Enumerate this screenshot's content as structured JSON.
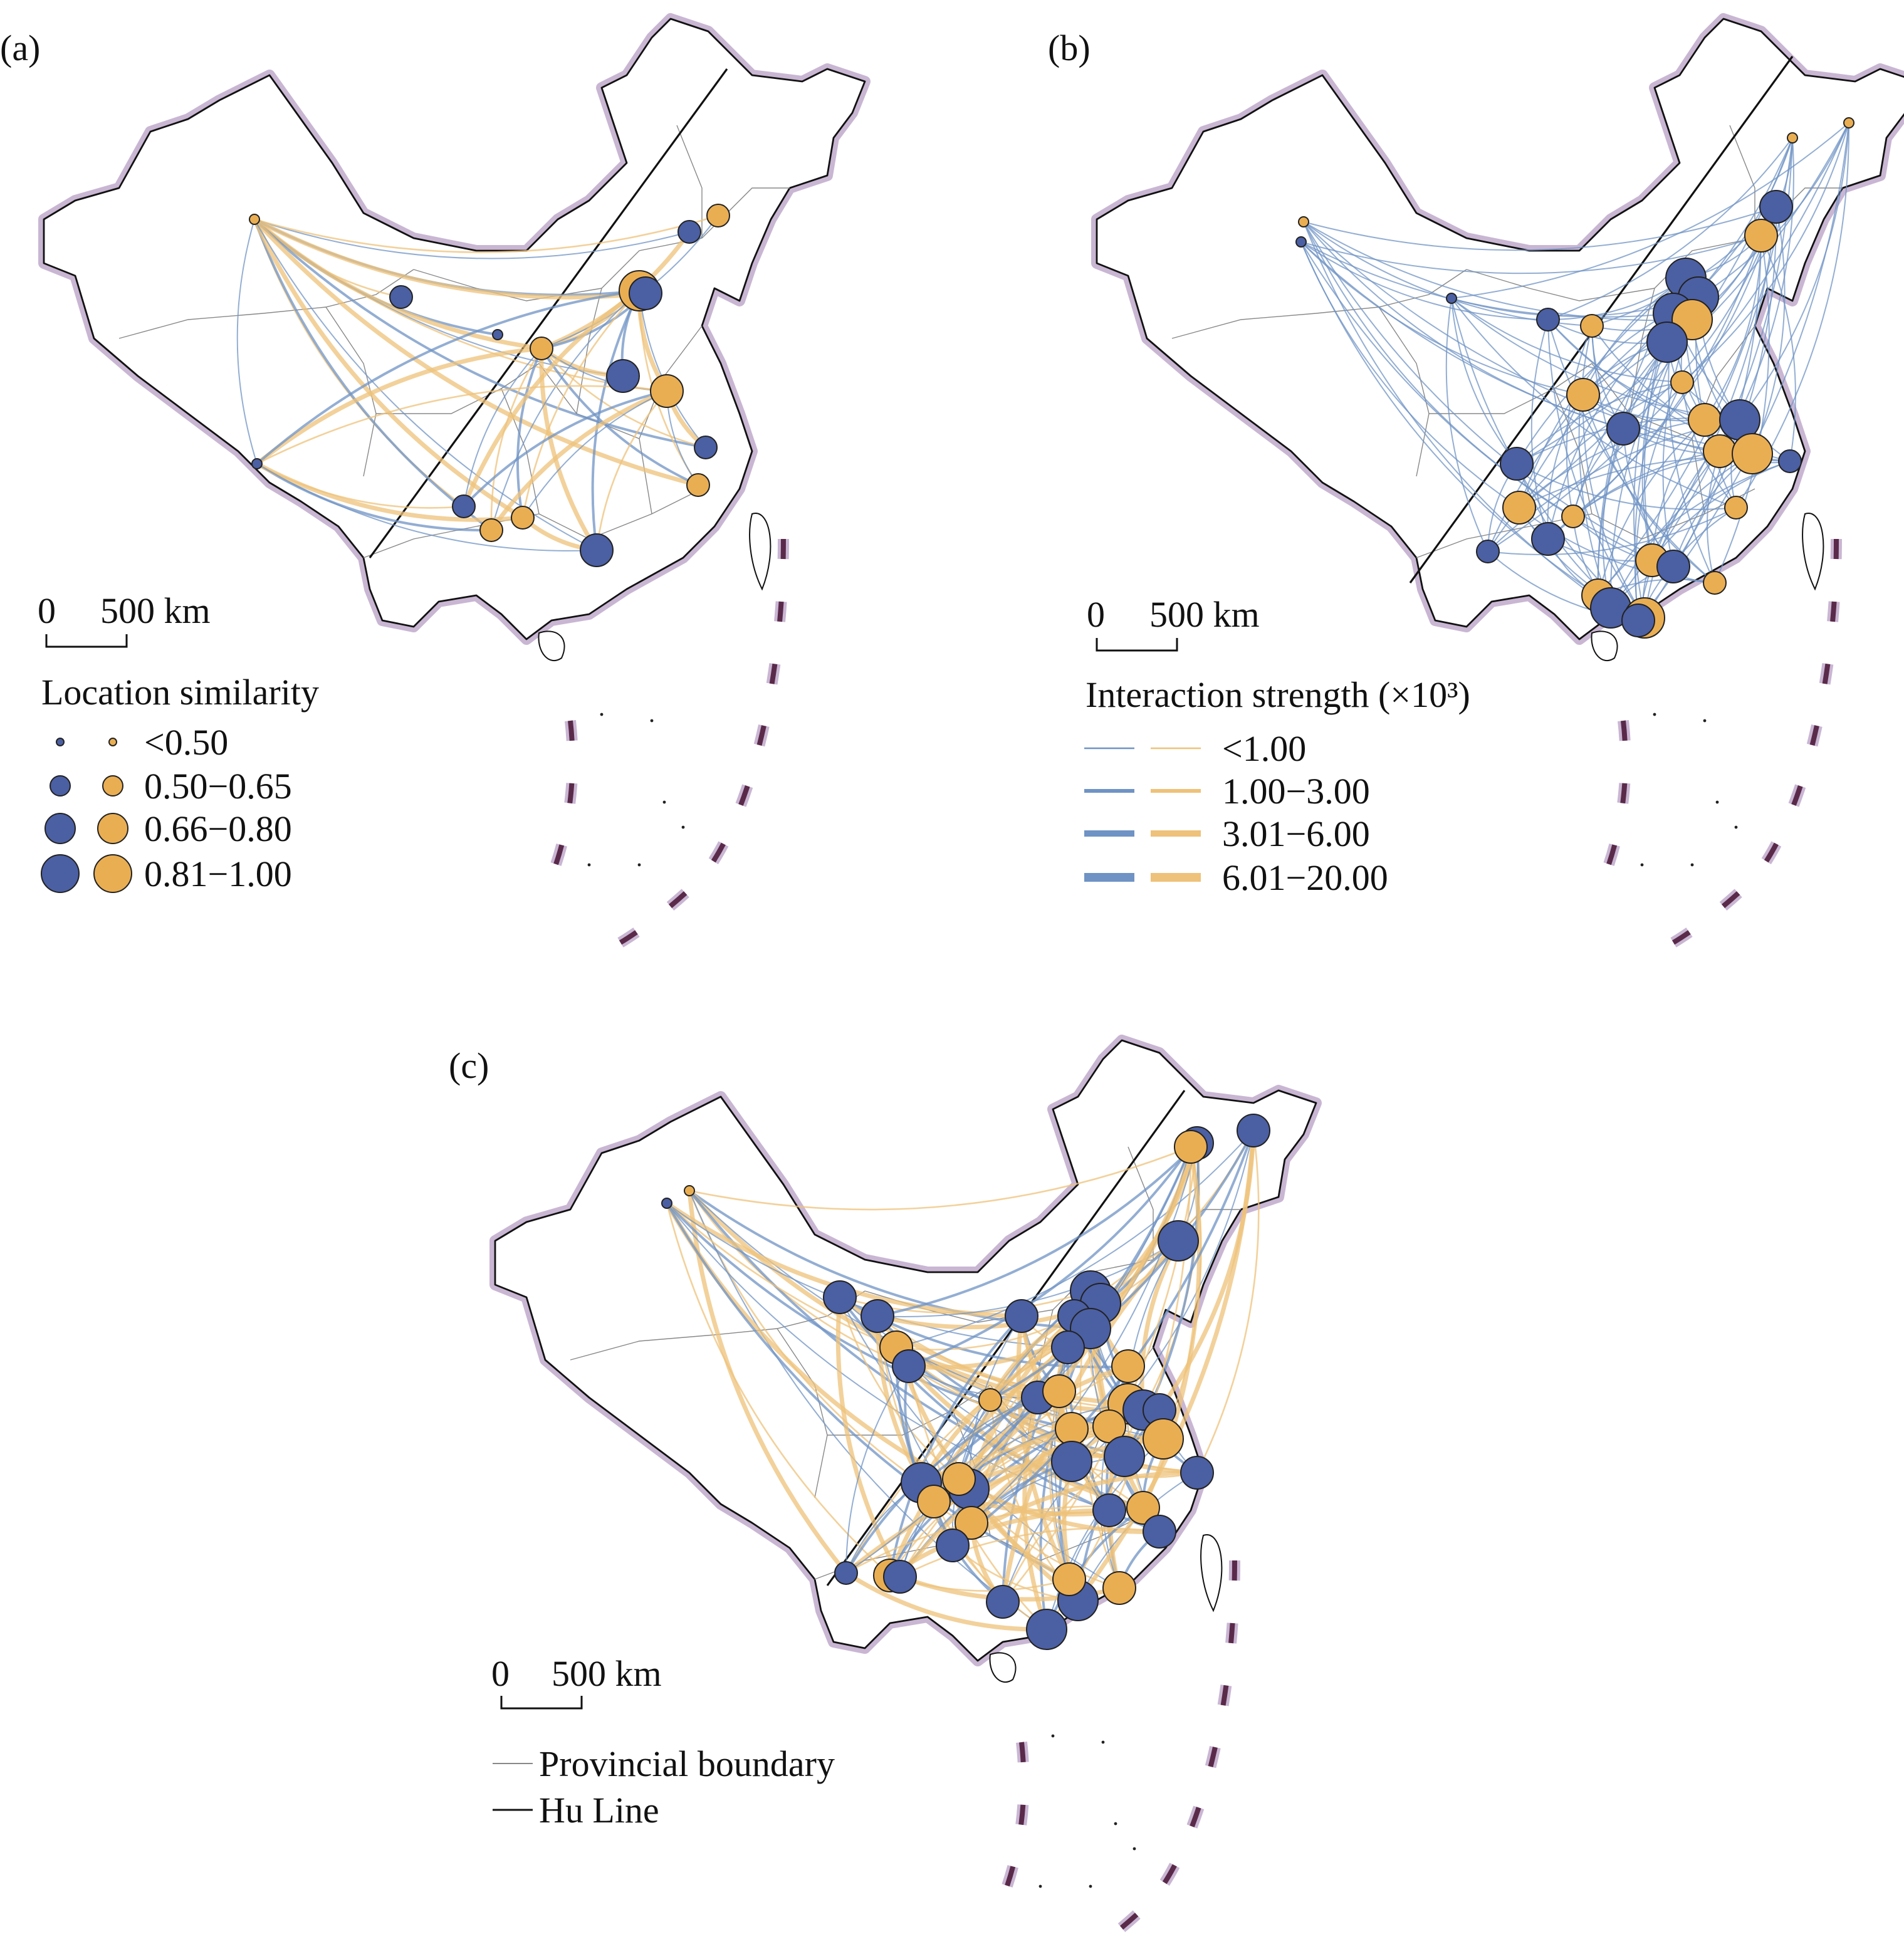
{
  "panels": [
    {
      "label": "(a)"
    },
    {
      "label": "(b)"
    },
    {
      "label": "(c)"
    }
  ],
  "scale_bar": {
    "labels": [
      "0",
      "500 km"
    ]
  },
  "legend_a": {
    "title": "Location similarity",
    "items": [
      "<0.50",
      "0.50−0.65",
      "0.66−0.80",
      "0.81−1.00"
    ]
  },
  "legend_b": {
    "title": "Interaction strength (×10³)",
    "items": [
      "<1.00",
      "1.00−3.00",
      "3.01−6.00",
      "6.01−20.00"
    ]
  },
  "legend_c": {
    "items": [
      "Provincial boundary",
      "Hu Line"
    ]
  }
}
